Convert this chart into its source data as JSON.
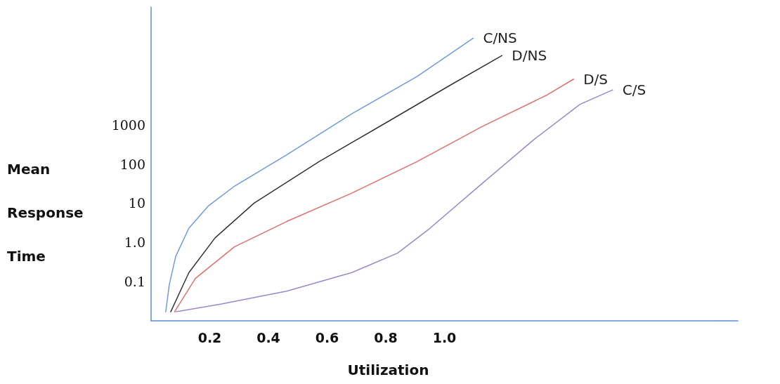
{
  "chart_data": {
    "type": "line",
    "xlabel": "Utilization",
    "ylabel": "Mean\nResponse\nTime",
    "log": "y",
    "xlim": [
      0,
      2.0
    ],
    "ylim": [
      0.01,
      1000000
    ],
    "xticks": [
      0.2,
      0.4,
      0.6,
      0.8,
      {
        "value": 1,
        "label": "1.0"
      }
    ],
    "yticks": [
      0.1,
      {
        "value": 1,
        "label": "1.0"
      },
      10,
      100,
      1000
    ],
    "grid": false,
    "legend": false,
    "marker": "none",
    "line_style": "solid",
    "series": [
      {
        "name": "C/NS",
        "color": "#6f9bd8",
        "x": [
          0.05,
          0.062,
          0.084,
          0.129,
          0.196,
          0.284,
          0.462,
          0.684,
          0.907,
          1.098
        ],
        "values": [
          0.017,
          0.083,
          0.44,
          2.3,
          8.6,
          27,
          170,
          1900,
          17000,
          160000
        ]
      },
      {
        "name": "D/NS",
        "color": "#333333",
        "x": [
          0.067,
          0.129,
          0.218,
          0.351,
          0.573,
          0.796,
          1.018,
          1.196
        ],
        "values": [
          0.017,
          0.17,
          1.3,
          10,
          115,
          1070,
          10000,
          58000
        ]
      },
      {
        "name": "D/S",
        "color": "#e07070",
        "x": [
          0.08,
          0.151,
          0.284,
          0.462,
          0.684,
          0.907,
          1.129,
          1.351,
          1.44
        ],
        "values": [
          0.017,
          0.12,
          0.77,
          3.4,
          18,
          115,
          900,
          5800,
          14500
        ]
      },
      {
        "name": "C/S",
        "color": "#9b87c9",
        "x": [
          0.084,
          0.24,
          0.462,
          0.684,
          0.84,
          0.951,
          1.129,
          1.307,
          1.462,
          1.573
        ],
        "values": [
          0.017,
          0.027,
          0.057,
          0.17,
          0.53,
          2.3,
          32,
          430,
          3300,
          7700
        ]
      }
    ]
  }
}
